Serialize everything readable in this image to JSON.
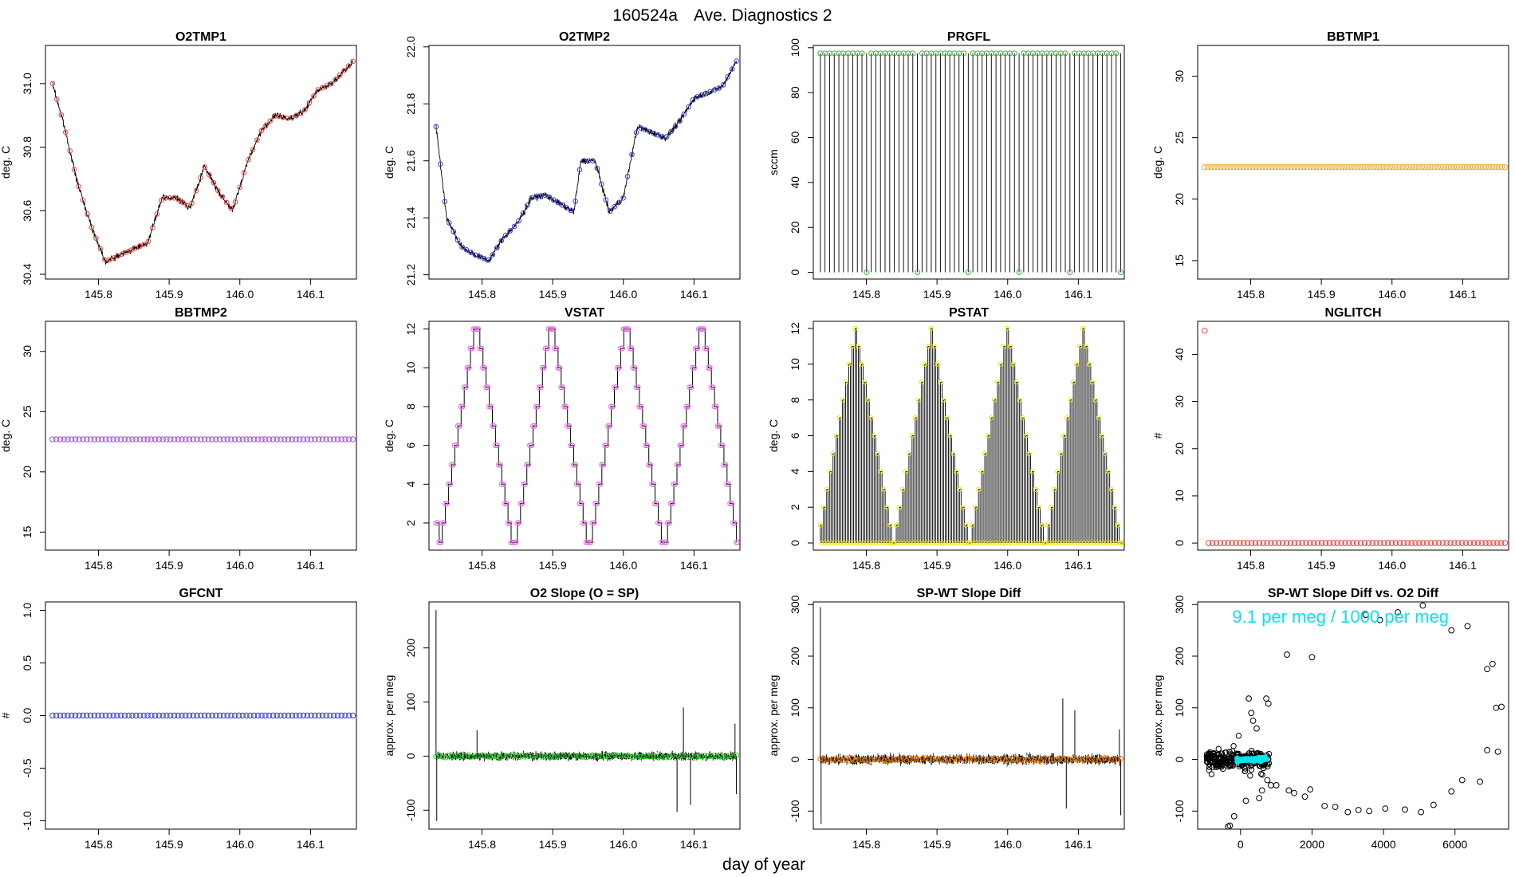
{
  "figure": {
    "title_id": "160524a",
    "title_text": "Ave. Diagnostics 2",
    "xlabel": "day of year"
  },
  "colors": {
    "red": "#e8453c",
    "blue": "#3b3bdc",
    "green": "#2eb82e",
    "orange": "#f5a623",
    "purple": "#a64df0",
    "magenta": "#e36fe3",
    "yellow": "#f2e300",
    "lime": "#22cc22",
    "darkorange": "#f07a00",
    "cyan": "#00e5ee",
    "black": "#000000"
  },
  "chart_data": [
    {
      "id": "O2TMP1",
      "type": "line",
      "title": "O2TMP1",
      "ylabel": "deg. C",
      "xlim": [
        145.725,
        146.165
      ],
      "ylim": [
        30.385,
        31.12
      ],
      "yticks": [
        30.4,
        30.6,
        30.8,
        31.0
      ],
      "ytick_labels": [
        "30.4",
        "30.6",
        "30.8",
        "31.0"
      ],
      "xticks": [
        145.8,
        145.9,
        146.0,
        146.1
      ],
      "xtick_labels": [
        "145.8",
        "145.9",
        "146.0",
        "146.1"
      ],
      "marker_color": "red",
      "style": "noisy",
      "series_x": [
        145.735,
        145.75,
        145.77,
        145.79,
        145.81,
        145.83,
        145.85,
        145.87,
        145.89,
        145.91,
        145.93,
        145.95,
        145.97,
        145.99,
        146.01,
        146.03,
        146.05,
        146.07,
        146.09,
        146.11,
        146.13,
        146.16
      ],
      "series_y": [
        31.0,
        30.88,
        30.69,
        30.55,
        30.44,
        30.46,
        30.48,
        30.5,
        30.64,
        30.64,
        30.61,
        30.74,
        30.66,
        30.6,
        30.75,
        30.85,
        30.9,
        30.89,
        30.91,
        30.98,
        31.0,
        31.07
      ]
    },
    {
      "id": "O2TMP2",
      "type": "line",
      "title": "O2TMP2",
      "ylabel": "deg. C",
      "xlim": [
        145.725,
        146.165
      ],
      "ylim": [
        21.185,
        22.005
      ],
      "yticks": [
        21.2,
        21.4,
        21.6,
        21.8,
        22.0
      ],
      "ytick_labels": [
        "21.2",
        "21.4",
        "21.6",
        "21.8",
        "22.0"
      ],
      "xticks": [
        145.8,
        145.9,
        146.0,
        146.1
      ],
      "xtick_labels": [
        "145.8",
        "145.9",
        "146.0",
        "146.1"
      ],
      "marker_color": "blue",
      "style": "noisy",
      "series_x": [
        145.735,
        145.75,
        145.77,
        145.79,
        145.81,
        145.83,
        145.85,
        145.87,
        145.89,
        145.91,
        145.93,
        145.94,
        145.96,
        145.98,
        146.0,
        146.02,
        146.04,
        146.06,
        146.08,
        146.1,
        146.12,
        146.14,
        146.16
      ],
      "series_y": [
        21.72,
        21.4,
        21.3,
        21.27,
        21.25,
        21.33,
        21.38,
        21.47,
        21.48,
        21.45,
        21.42,
        21.6,
        21.6,
        21.42,
        21.47,
        21.72,
        21.7,
        21.68,
        21.74,
        21.82,
        21.84,
        21.86,
        21.95
      ]
    },
    {
      "id": "PRGFL",
      "type": "spikes",
      "title": "PRGFL",
      "ylabel": "sccm",
      "xlim": [
        145.725,
        146.165
      ],
      "ylim": [
        -3,
        101
      ],
      "yticks": [
        0,
        20,
        40,
        60,
        80,
        100
      ],
      "ytick_labels": [
        "0",
        "20",
        "40",
        "60",
        "80",
        "100"
      ],
      "xticks": [
        145.8,
        145.9,
        146.0,
        146.1
      ],
      "xtick_labels": [
        "145.8",
        "145.9",
        "146.0",
        "146.1"
      ],
      "marker_color": "green",
      "high": 97.5,
      "low": 0,
      "x_start": 145.735,
      "x_end": 146.16,
      "count": 66,
      "cycle": 11,
      "low_index": 10
    },
    {
      "id": "BBTMP1",
      "type": "flat",
      "title": "BBTMP1",
      "ylabel": "deg. C",
      "xlim": [
        145.725,
        146.165
      ],
      "ylim": [
        13.5,
        32.5
      ],
      "yticks": [
        15,
        20,
        25,
        30
      ],
      "ytick_labels": [
        "15",
        "20",
        "25",
        "30"
      ],
      "xticks": [
        145.8,
        145.9,
        146.0,
        146.1
      ],
      "xtick_labels": [
        "145.8",
        "145.9",
        "146.0",
        "146.1"
      ],
      "marker_color": "orange",
      "value": 22.6,
      "x_start": 145.735,
      "x_end": 146.16,
      "count": 95
    },
    {
      "id": "BBTMP2",
      "type": "flat",
      "title": "BBTMP2",
      "ylabel": "deg. C",
      "xlim": [
        145.725,
        146.165
      ],
      "ylim": [
        13.5,
        32.5
      ],
      "yticks": [
        15,
        20,
        25,
        30
      ],
      "ytick_labels": [
        "15",
        "20",
        "25",
        "30"
      ],
      "xticks": [
        145.8,
        145.9,
        146.0,
        146.1
      ],
      "xtick_labels": [
        "145.8",
        "145.9",
        "146.0",
        "146.1"
      ],
      "marker_color": "purple",
      "value": 22.7,
      "x_start": 145.735,
      "x_end": 146.16,
      "count": 80
    },
    {
      "id": "VSTAT",
      "type": "steps",
      "title": "VSTAT",
      "ylabel": "deg. C",
      "xlim": [
        145.725,
        146.165
      ],
      "ylim": [
        0.6,
        12.4
      ],
      "yticks": [
        2,
        4,
        6,
        8,
        10,
        12
      ],
      "ytick_labels": [
        "2",
        "4",
        "6",
        "8",
        "10",
        "12"
      ],
      "xticks": [
        145.8,
        145.9,
        146.0,
        146.1
      ],
      "xtick_labels": [
        "145.8",
        "145.9",
        "146.0",
        "146.1"
      ],
      "marker_color": "magenta",
      "x_start": 145.735,
      "x_end": 146.16,
      "values": [
        2,
        1,
        2,
        3,
        4,
        5,
        6,
        7,
        8,
        9,
        10,
        11,
        12,
        12,
        11,
        10,
        9,
        8,
        7,
        6,
        5,
        4,
        3,
        2,
        1,
        1,
        2,
        3,
        4,
        5,
        6,
        7,
        8,
        9,
        10,
        11,
        12,
        12,
        11,
        10,
        9,
        8,
        7,
        6,
        5,
        4,
        3,
        2,
        1,
        1,
        2,
        3,
        4,
        5,
        6,
        7,
        8,
        9,
        10,
        11,
        12,
        12,
        11,
        10,
        9,
        8,
        7,
        6,
        5,
        4,
        3,
        2,
        1,
        1,
        2,
        3,
        4,
        5,
        6,
        7,
        8,
        9,
        10,
        11,
        12,
        12,
        11,
        10,
        9,
        8,
        7,
        6,
        5,
        4,
        3,
        2,
        1
      ]
    },
    {
      "id": "PSTAT",
      "type": "spikesteps",
      "title": "PSTAT",
      "ylabel": "deg. C",
      "xlim": [
        145.725,
        146.165
      ],
      "ylim": [
        -0.4,
        12.4
      ],
      "yticks": [
        0,
        2,
        4,
        6,
        8,
        10,
        12
      ],
      "ytick_labels": [
        "0",
        "2",
        "4",
        "6",
        "8",
        "10",
        "12"
      ],
      "xticks": [
        145.8,
        145.9,
        146.0,
        146.1
      ],
      "xtick_labels": [
        "145.8",
        "145.9",
        "146.0",
        "146.1"
      ],
      "marker_color": "yellow",
      "x_start": 145.735,
      "x_end": 146.16,
      "values": [
        1,
        2,
        3,
        4,
        5,
        6,
        7,
        8,
        9,
        10,
        11,
        12,
        11,
        10,
        9,
        8,
        7,
        6,
        5,
        4,
        3,
        2,
        1,
        0,
        1,
        2,
        3,
        4,
        5,
        6,
        7,
        8,
        9,
        10,
        11,
        12,
        11,
        10,
        9,
        8,
        7,
        6,
        5,
        4,
        3,
        2,
        1,
        0,
        1,
        2,
        3,
        4,
        5,
        6,
        7,
        8,
        9,
        10,
        11,
        12,
        11,
        10,
        9,
        8,
        7,
        6,
        5,
        4,
        3,
        2,
        1,
        0,
        1,
        2,
        3,
        4,
        5,
        6,
        7,
        8,
        9,
        10,
        11,
        12,
        11,
        10,
        9,
        8,
        7,
        6,
        5,
        4,
        3,
        2,
        1,
        0
      ]
    },
    {
      "id": "NGLITCH",
      "type": "points",
      "title": "NGLITCH",
      "ylabel": "#",
      "xlim": [
        145.725,
        146.165
      ],
      "ylim": [
        -1.5,
        47
      ],
      "yticks": [
        0,
        10,
        20,
        30,
        40
      ],
      "ytick_labels": [
        "0",
        "10",
        "20",
        "30",
        "40"
      ],
      "xticks": [
        145.8,
        145.9,
        146.0,
        146.1
      ],
      "xtick_labels": [
        "145.8",
        "145.9",
        "146.0",
        "146.1"
      ],
      "marker_color": "red",
      "first_value": 45,
      "value": 0,
      "x_start": 145.735,
      "x_end": 146.16,
      "count": 78
    },
    {
      "id": "GFCNT",
      "type": "flat",
      "title": "GFCNT",
      "ylabel": "#",
      "xlim": [
        145.725,
        146.165
      ],
      "ylim": [
        -1.08,
        1.08
      ],
      "yticks": [
        -1.0,
        -0.5,
        0.0,
        0.5,
        1.0
      ],
      "ytick_labels": [
        "-1.0",
        "-0.5",
        "0.0",
        "0.5",
        "1.0"
      ],
      "xticks": [
        145.8,
        145.9,
        146.0,
        146.1
      ],
      "xtick_labels": [
        "145.8",
        "145.9",
        "146.0",
        "146.1"
      ],
      "marker_color": "blue",
      "value": 0.0,
      "x_start": 145.735,
      "x_end": 146.16,
      "count": 80
    },
    {
      "id": "O2SLOPE",
      "type": "noise",
      "title": "O2 Slope (O = SP)",
      "ylabel": "approx. per meg",
      "xlim": [
        145.725,
        146.165
      ],
      "ylim": [
        -135,
        285
      ],
      "yticks": [
        -100,
        0,
        100,
        200
      ],
      "ytick_labels": [
        "-100",
        "0",
        "100",
        "200"
      ],
      "xticks": [
        145.8,
        145.9,
        146.0,
        146.1
      ],
      "xtick_labels": [
        "145.8",
        "145.9",
        "146.0",
        "146.1"
      ],
      "marker_color": "lime",
      "base": 0,
      "amp": 8,
      "spikes": [
        {
          "x": 145.735,
          "y": 270
        },
        {
          "x": 145.736,
          "y": -120
        },
        {
          "x": 145.793,
          "y": 48
        },
        {
          "x": 146.076,
          "y": -103
        },
        {
          "x": 146.085,
          "y": 90
        },
        {
          "x": 146.095,
          "y": -90
        },
        {
          "x": 146.158,
          "y": 60
        },
        {
          "x": 146.16,
          "y": -70
        }
      ]
    },
    {
      "id": "SPWTDIFF",
      "type": "noise",
      "title": "SP-WT Slope Diff",
      "ylabel": "approx. per meg",
      "xlim": [
        145.725,
        146.165
      ],
      "ylim": [
        -135,
        305
      ],
      "yticks": [
        -100,
        0,
        100,
        200,
        300
      ],
      "ytick_labels": [
        "-100",
        "0",
        "100",
        "200",
        "300"
      ],
      "xticks": [
        145.8,
        145.9,
        146.0,
        146.1
      ],
      "xtick_labels": [
        "145.8",
        "145.9",
        "146.0",
        "146.1"
      ],
      "marker_color": "darkorange",
      "base": 0,
      "amp": 10,
      "spikes": [
        {
          "x": 145.735,
          "y": 295
        },
        {
          "x": 145.736,
          "y": -125
        },
        {
          "x": 146.078,
          "y": 118
        },
        {
          "x": 146.083,
          "y": -95
        },
        {
          "x": 146.095,
          "y": 95
        },
        {
          "x": 146.158,
          "y": 58
        },
        {
          "x": 146.16,
          "y": -108
        }
      ]
    },
    {
      "id": "SCATTER",
      "type": "scatter",
      "title": "SP-WT Slope Diff vs. O2 Diff",
      "ylabel": "approx. per meg",
      "xlim": [
        -1200,
        7500
      ],
      "ylim": [
        -135,
        305
      ],
      "yticks": [
        -100,
        0,
        100,
        200,
        300
      ],
      "ytick_labels": [
        "-100",
        "0",
        "100",
        "200",
        "300"
      ],
      "xticks": [
        0,
        2000,
        4000,
        6000
      ],
      "xtick_labels": [
        "0",
        "2000",
        "4000",
        "6000"
      ],
      "annotation": "9.1 per meg / 1000 per meg",
      "annotation_x": 2800,
      "annotation_y": 265,
      "fit_slope": 0.0091,
      "points": [
        [
          -350,
          -130
        ],
        [
          -300,
          -128
        ],
        [
          -180,
          -110
        ],
        [
          150,
          -80
        ],
        [
          230,
          118
        ],
        [
          300,
          90
        ],
        [
          350,
          75
        ],
        [
          450,
          60
        ],
        [
          520,
          -75
        ],
        [
          600,
          -60
        ],
        [
          750,
          -40
        ],
        [
          720,
          118
        ],
        [
          780,
          108
        ],
        [
          850,
          -50
        ],
        [
          1000,
          -50
        ],
        [
          1300,
          203
        ],
        [
          1350,
          -60
        ],
        [
          1500,
          -65
        ],
        [
          1800,
          -72
        ],
        [
          1950,
          -58
        ],
        [
          2000,
          198
        ],
        [
          2350,
          -90
        ],
        [
          2650,
          -92
        ],
        [
          3000,
          -102
        ],
        [
          3300,
          -98
        ],
        [
          3500,
          280
        ],
        [
          3600,
          -100
        ],
        [
          3900,
          270
        ],
        [
          4050,
          -95
        ],
        [
          4400,
          285
        ],
        [
          4600,
          -97
        ],
        [
          5050,
          -102
        ],
        [
          5100,
          298
        ],
        [
          5400,
          -88
        ],
        [
          5900,
          250
        ],
        [
          5900,
          -62
        ],
        [
          6200,
          -40
        ],
        [
          6350,
          258
        ],
        [
          6700,
          -43
        ],
        [
          6900,
          18
        ],
        [
          6900,
          175
        ],
        [
          7050,
          185
        ],
        [
          7150,
          100
        ],
        [
          7200,
          15
        ],
        [
          7300,
          102
        ]
      ]
    }
  ]
}
